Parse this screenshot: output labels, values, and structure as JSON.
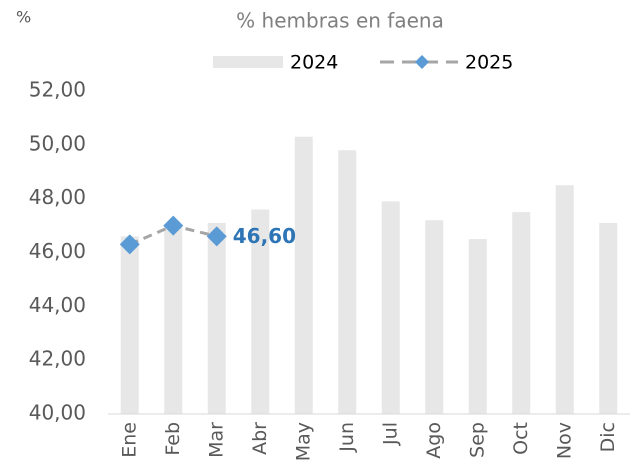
{
  "chart_data": {
    "type": "bar_line",
    "title": "% hembras en faena",
    "y_label": "%",
    "categories": [
      "Ene",
      "Feb",
      "Mar",
      "Abr",
      "May",
      "Jun",
      "Jul",
      "Ago",
      "Sep",
      "Oct",
      "Nov",
      "Dic"
    ],
    "series": [
      {
        "name": "2024",
        "type": "bar",
        "color": "#e7e7e7",
        "values": [
          46.6,
          47.0,
          47.1,
          47.6,
          50.3,
          49.8,
          47.9,
          47.2,
          46.5,
          47.5,
          48.5,
          47.1
        ]
      },
      {
        "name": "2025",
        "type": "line",
        "color": "#a6a6a6",
        "marker_color": "#5b9bd5",
        "values": [
          46.3,
          47.0,
          46.6,
          null,
          null,
          null,
          null,
          null,
          null,
          null,
          null,
          null
        ],
        "value_labels": [
          null,
          null,
          "46,60",
          null,
          null,
          null,
          null,
          null,
          null,
          null,
          null,
          null
        ]
      }
    ],
    "ylim": [
      40,
      52
    ],
    "yticks": [
      {
        "value": 40,
        "label": "40,00"
      },
      {
        "value": 42,
        "label": "42,00"
      },
      {
        "value": 44,
        "label": "44,00"
      },
      {
        "value": 46,
        "label": "46,00"
      },
      {
        "value": 48,
        "label": "48,00"
      },
      {
        "value": 50,
        "label": "50,00"
      },
      {
        "value": 52,
        "label": "52,00"
      }
    ],
    "grid": false,
    "legend": "top"
  }
}
